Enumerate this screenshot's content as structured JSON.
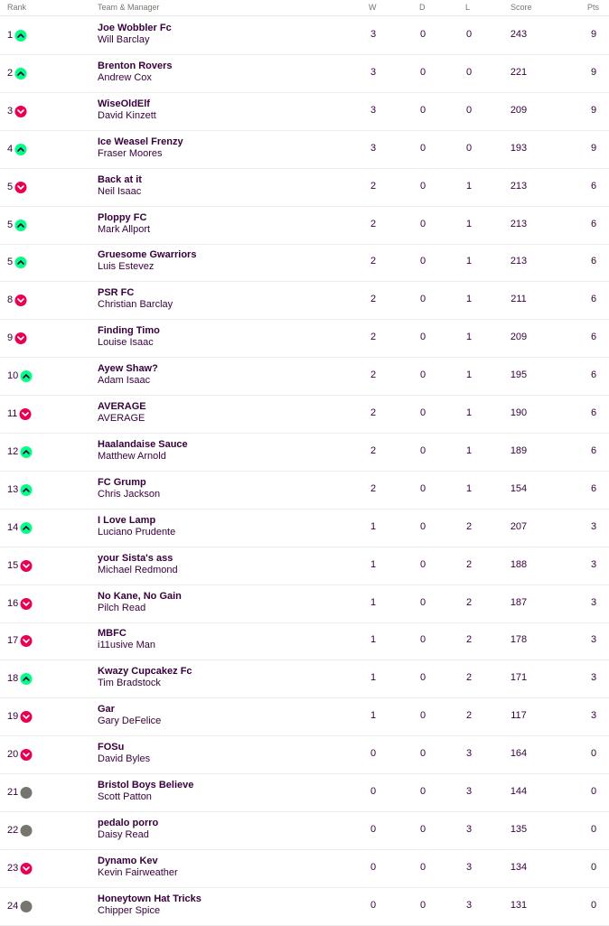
{
  "table": {
    "header": [
      "Rank",
      "Team & Manager",
      "W",
      "D",
      "L",
      "Score",
      "Pts"
    ],
    "rows": [
      {
        "cells": [
          1,
          "Joe Wobbler Fc",
          "Will Barclay",
          3,
          0,
          0,
          243,
          9
        ],
        "marker_color": "#00ff87"
      },
      {
        "cells": [
          2,
          "Brenton Rovers",
          "Andrew Cox",
          3,
          0,
          0,
          221,
          9
        ],
        "marker_color": "#00ff87"
      },
      {
        "cells": [
          3,
          "WiseOldElf",
          "David Kinzett",
          3,
          0,
          0,
          209,
          9
        ],
        "marker_color": "#e90052"
      },
      {
        "cells": [
          4,
          "Ice Weasel Frenzy",
          "Fraser Moores",
          3,
          0,
          0,
          193,
          9
        ],
        "marker_color": "#00ff87"
      },
      {
        "cells": [
          5,
          "Back at it",
          "Neil Isaac",
          2,
          0,
          1,
          213,
          6
        ],
        "marker_color": "#e90052"
      },
      {
        "cells": [
          5,
          "Ploppy FC",
          "Mark Allport",
          2,
          0,
          1,
          213,
          6
        ],
        "marker_color": "#00ff87"
      },
      {
        "cells": [
          5,
          "Gruesome Gwarriors",
          "Luis Estevez",
          2,
          0,
          1,
          213,
          6
        ],
        "marker_color": "#00ff87"
      },
      {
        "cells": [
          8,
          "PSR FC",
          "Christian Barclay",
          2,
          0,
          1,
          211,
          6
        ],
        "marker_color": "#e90052"
      },
      {
        "cells": [
          9,
          "Finding Timo",
          "Louise Isaac",
          2,
          0,
          1,
          209,
          6
        ],
        "marker_color": "#e90052"
      },
      {
        "cells": [
          10,
          "Ayew Shaw?",
          "Adam Isaac",
          2,
          0,
          1,
          195,
          6
        ],
        "marker_color": "#00ff87"
      },
      {
        "cells": [
          11,
          "AVERAGE",
          "AVERAGE",
          2,
          0,
          1,
          190,
          6
        ],
        "marker_color": "#e90052"
      },
      {
        "cells": [
          12,
          "Haalandaise Sauce",
          "Matthew Arnold",
          2,
          0,
          1,
          189,
          6
        ],
        "marker_color": "#00ff87"
      },
      {
        "cells": [
          13,
          "FC Grump",
          "Chris Jackson",
          2,
          0,
          1,
          154,
          6
        ],
        "marker_color": "#00ff87"
      },
      {
        "cells": [
          14,
          "I Love Lamp",
          "Luciano Prudente",
          1,
          0,
          2,
          207,
          3
        ],
        "marker_color": "#00ff87"
      },
      {
        "cells": [
          15,
          "your Sista's ass",
          "Michael Redmond",
          1,
          0,
          2,
          188,
          3
        ],
        "marker_color": "#e90052"
      },
      {
        "cells": [
          16,
          "No Kane, No Gain",
          "Pilch Read",
          1,
          0,
          2,
          187,
          3
        ],
        "marker_color": "#e90052"
      },
      {
        "cells": [
          17,
          "MBFC",
          "i11usive Man",
          1,
          0,
          2,
          178,
          3
        ],
        "marker_color": "#e90052"
      },
      {
        "cells": [
          18,
          "Kwazy Cupcakez Fc",
          "Tim Bradstock",
          1,
          0,
          2,
          171,
          3
        ],
        "marker_color": "#00ff87"
      },
      {
        "cells": [
          19,
          "Gar",
          "Gary DeFelice",
          1,
          0,
          2,
          117,
          3
        ],
        "marker_color": "#e90052"
      },
      {
        "cells": [
          20,
          "FOSu",
          "David Byles",
          0,
          0,
          3,
          164,
          0
        ],
        "marker_color": "#e90052"
      },
      {
        "cells": [
          21,
          "Bristol Boys Believe",
          "Scott Patton",
          0,
          0,
          3,
          144,
          0
        ],
        "marker_color": "#76766f"
      },
      {
        "cells": [
          22,
          "pedalo porro",
          "Daisy Read",
          0,
          0,
          3,
          135,
          0
        ],
        "marker_color": "#76766f"
      },
      {
        "cells": [
          23,
          "Dynamo Kev",
          "Kevin Fairweather",
          0,
          0,
          3,
          134,
          0
        ],
        "marker_color": "#e90052"
      },
      {
        "cells": [
          24,
          "Honeytown Hat Tricks",
          "Chipper Spice",
          0,
          0,
          3,
          131,
          0
        ],
        "marker_color": "#76766f"
      }
    ]
  }
}
